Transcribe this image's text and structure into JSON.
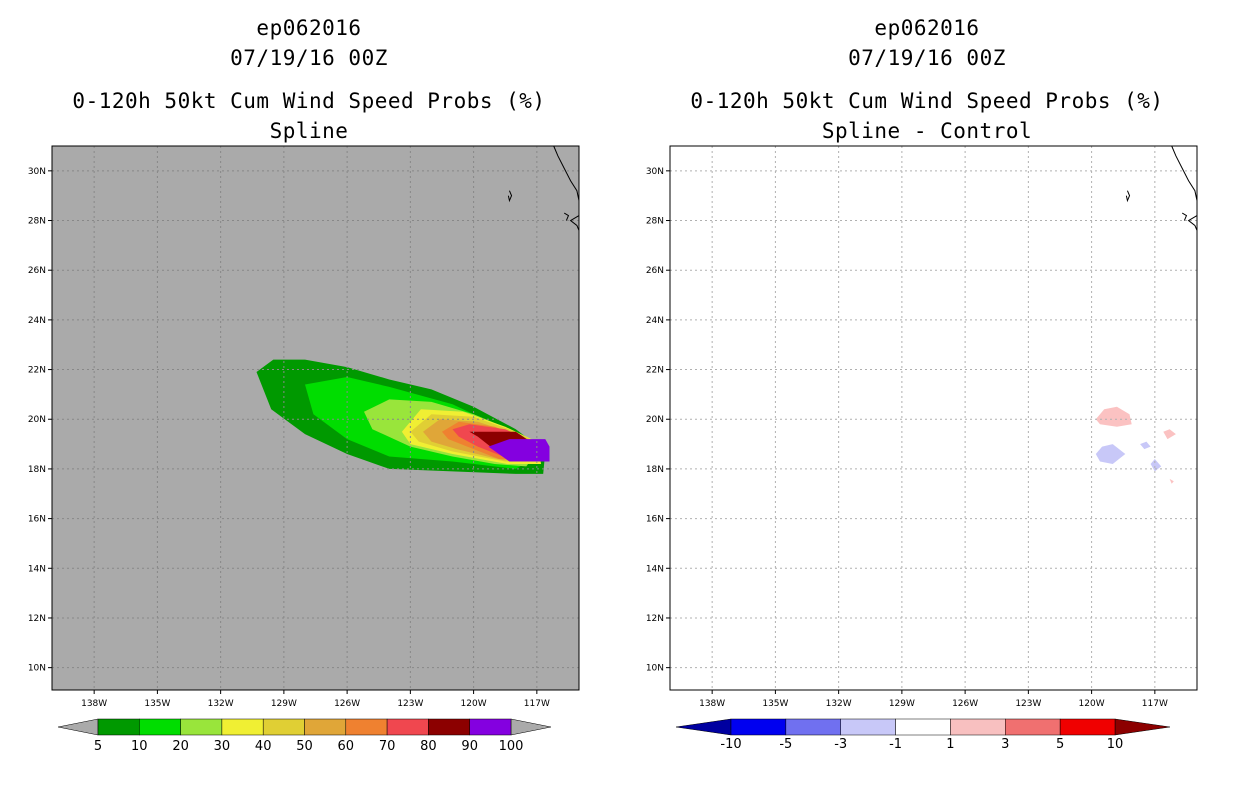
{
  "panels": [
    {
      "title_lines": [
        "ep062016",
        "07/19/16 00Z",
        "0-120h 50kt Cum Wind Speed Probs (%)",
        "Spline"
      ]
    },
    {
      "title_lines": [
        "ep062016",
        "07/19/16 00Z",
        "0-120h 50kt Cum Wind Speed Probs (%)",
        "Spline - Control"
      ]
    }
  ],
  "chart_data": [
    {
      "type": "heatmap",
      "title": "0-120h 50kt Cum Wind Speed Probs (%) - Spline",
      "x_ticks": [
        "138W",
        "135W",
        "132W",
        "129W",
        "126W",
        "123W",
        "120W",
        "117W"
      ],
      "y_ticks": [
        "30N",
        "28N",
        "26N",
        "24N",
        "22N",
        "20N",
        "18N",
        "16N",
        "14N",
        "12N",
        "10N"
      ],
      "xlim": [
        -140.0,
        -115.0
      ],
      "ylim": [
        9.1,
        31.0
      ],
      "background": "#aaaaaa",
      "grid": true,
      "colorbar": {
        "labels": [
          "5",
          "10",
          "20",
          "30",
          "40",
          "50",
          "60",
          "70",
          "80",
          "90",
          "100"
        ],
        "colors": [
          "#009900",
          "#00dd00",
          "#99e53b",
          "#f0ef33",
          "#e0cf34",
          "#e0a638",
          "#ef8130",
          "#f0474f",
          "#8c0000",
          "#8400e0"
        ]
      },
      "contours": [
        {
          "level": 5,
          "color": "#009900",
          "points": [
            [
              -130.3,
              21.9
            ],
            [
              -129.5,
              22.4
            ],
            [
              -128,
              22.4
            ],
            [
              -126,
              22.1
            ],
            [
              -124,
              21.6
            ],
            [
              -122,
              21.2
            ],
            [
              -120,
              20.5
            ],
            [
              -118,
              19.6
            ],
            [
              -116.6,
              18.7
            ],
            [
              -116.7,
              17.8
            ],
            [
              -118,
              17.8
            ],
            [
              -121,
              17.9
            ],
            [
              -124,
              18.0
            ],
            [
              -126,
              18.6
            ],
            [
              -128,
              19.4
            ],
            [
              -129.6,
              20.4
            ]
          ]
        },
        {
          "level": 10,
          "color": "#00dd00",
          "points": [
            [
              -128,
              21.4
            ],
            [
              -126,
              21.7
            ],
            [
              -124,
              21.3
            ],
            [
              -121,
              20.6
            ],
            [
              -118.5,
              19.6
            ],
            [
              -117,
              18.5
            ],
            [
              -118,
              18.0
            ],
            [
              -121,
              18.3
            ],
            [
              -124,
              18.5
            ],
            [
              -126,
              19.2
            ],
            [
              -127.6,
              20.2
            ]
          ]
        },
        {
          "level": 20,
          "color": "#99e53b",
          "points": [
            [
              -125.2,
              20.3
            ],
            [
              -124,
              20.8
            ],
            [
              -122,
              20.7
            ],
            [
              -120,
              20.2
            ],
            [
              -118,
              19.5
            ],
            [
              -116.9,
              18.8
            ],
            [
              -117.5,
              18.1
            ],
            [
              -119,
              18.2
            ],
            [
              -121,
              18.5
            ],
            [
              -123,
              18.9
            ],
            [
              -124.8,
              19.6
            ]
          ]
        },
        {
          "level": 30,
          "color": "#f0ef33",
          "points": [
            [
              -123.4,
              19.5
            ],
            [
              -122.5,
              20.4
            ],
            [
              -120.5,
              20.3
            ],
            [
              -118.5,
              19.7
            ],
            [
              -117,
              19.1
            ],
            [
              -116.8,
              18.2
            ],
            [
              -118.4,
              18.2
            ],
            [
              -121,
              18.6
            ],
            [
              -123,
              19.0
            ]
          ]
        },
        {
          "level": 40,
          "color": "#e0cf34",
          "points": [
            [
              -123.0,
              19.5
            ],
            [
              -122,
              20.2
            ],
            [
              -120,
              20.1
            ],
            [
              -118,
              19.5
            ],
            [
              -116.9,
              19.0
            ],
            [
              -116.9,
              18.3
            ],
            [
              -118.5,
              18.3
            ],
            [
              -121,
              18.7
            ],
            [
              -122.6,
              19.1
            ]
          ]
        },
        {
          "level": 50,
          "color": "#e0a638",
          "points": [
            [
              -122.4,
              19.5
            ],
            [
              -121.6,
              20.0
            ],
            [
              -119.8,
              19.9
            ],
            [
              -118,
              19.4
            ],
            [
              -117,
              19.0
            ],
            [
              -117,
              18.35
            ],
            [
              -118.6,
              18.35
            ],
            [
              -120.8,
              18.8
            ],
            [
              -122,
              19.1
            ]
          ]
        },
        {
          "level": 60,
          "color": "#ef8130",
          "points": [
            [
              -121.5,
              19.5
            ],
            [
              -120.7,
              19.9
            ],
            [
              -119,
              19.7
            ],
            [
              -117.5,
              19.2
            ],
            [
              -117,
              18.9
            ],
            [
              -117,
              18.4
            ],
            [
              -118.8,
              18.4
            ],
            [
              -120.3,
              18.9
            ],
            [
              -121.2,
              19.2
            ]
          ]
        },
        {
          "level": 70,
          "color": "#f0474f",
          "points": [
            [
              -121.0,
              19.6
            ],
            [
              -120.2,
              19.8
            ],
            [
              -118.5,
              19.6
            ],
            [
              -117.2,
              19.1
            ],
            [
              -117.0,
              18.5
            ],
            [
              -118.6,
              18.5
            ],
            [
              -119.8,
              18.9
            ],
            [
              -120.7,
              19.3
            ]
          ]
        },
        {
          "level": 80,
          "color": "#8c0000",
          "points": [
            [
              -120.2,
              19.5
            ],
            [
              -118,
              19.5
            ],
            [
              -117.3,
              19.1
            ],
            [
              -117.3,
              18.5
            ],
            [
              -118.5,
              18.5
            ],
            [
              -119.2,
              18.9
            ],
            [
              -119.8,
              19.3
            ]
          ]
        },
        {
          "level": 90,
          "color": "#8400e0",
          "points": [
            [
              -119.3,
              18.9
            ],
            [
              -118.3,
              19.2
            ],
            [
              -116.6,
              19.2
            ],
            [
              -116.4,
              18.9
            ],
            [
              -116.4,
              18.3
            ],
            [
              -118.3,
              18.3
            ],
            [
              -118.8,
              18.6
            ]
          ]
        }
      ]
    },
    {
      "type": "heatmap",
      "title": "0-120h 50kt Cum Wind Speed Probs (%) - Spline - Control",
      "x_ticks": [
        "138W",
        "135W",
        "132W",
        "129W",
        "126W",
        "123W",
        "120W",
        "117W"
      ],
      "y_ticks": [
        "30N",
        "28N",
        "26N",
        "24N",
        "22N",
        "20N",
        "18N",
        "16N",
        "14N",
        "12N",
        "10N"
      ],
      "xlim": [
        -140.0,
        -115.0
      ],
      "ylim": [
        9.1,
        31.0
      ],
      "background": "#ffffff",
      "grid": true,
      "colorbar": {
        "labels": [
          "-10",
          "-5",
          "-3",
          "-1",
          "1",
          "3",
          "5",
          "10"
        ],
        "colors": [
          "#0000a0",
          "#0000f0",
          "#7070f0",
          "#c8c8f8",
          "#ffffff",
          "#f8c0c0",
          "#f07070",
          "#f00000",
          "#8c0000"
        ]
      },
      "contours": [
        {
          "level": 1,
          "color": "#fbc2c2",
          "points": [
            [
              -119.8,
              20.0
            ],
            [
              -119.4,
              20.4
            ],
            [
              -118.8,
              20.5
            ],
            [
              -118.2,
              20.2
            ],
            [
              -118.1,
              19.8
            ],
            [
              -118.8,
              19.7
            ],
            [
              -119.6,
              19.8
            ]
          ]
        },
        {
          "level": -1,
          "color": "#c8c8f8",
          "points": [
            [
              -119.8,
              18.6
            ],
            [
              -119.5,
              18.9
            ],
            [
              -119.0,
              19.0
            ],
            [
              -118.4,
              18.6
            ],
            [
              -119.0,
              18.2
            ],
            [
              -119.6,
              18.3
            ]
          ]
        },
        {
          "level": -1,
          "color": "#c8c8f8",
          "points": [
            [
              -117.7,
              19.0
            ],
            [
              -117.4,
              19.1
            ],
            [
              -117.2,
              18.9
            ],
            [
              -117.5,
              18.8
            ]
          ]
        },
        {
          "level": 1,
          "color": "#fbc2c2",
          "points": [
            [
              -116.6,
              19.5
            ],
            [
              -116.3,
              19.6
            ],
            [
              -116.0,
              19.4
            ],
            [
              -116.4,
              19.2
            ]
          ]
        },
        {
          "level": -1,
          "color": "#c8c8f8",
          "points": [
            [
              -117.2,
              18.2
            ],
            [
              -117.0,
              18.4
            ],
            [
              -116.7,
              18.1
            ],
            [
              -117.0,
              17.9
            ]
          ]
        },
        {
          "level": 1,
          "color": "#fbc2c2",
          "points": [
            [
              -116.3,
              17.6
            ],
            [
              -116.1,
              17.5
            ],
            [
              -116.2,
              17.4
            ]
          ]
        }
      ]
    }
  ]
}
